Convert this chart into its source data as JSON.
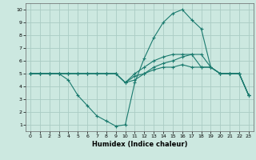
{
  "xlabel": "Humidex (Indice chaleur)",
  "bg_color": "#cce8e0",
  "grid_color": "#aaccc4",
  "line_color": "#1a7a6e",
  "xlim": [
    -0.5,
    23.5
  ],
  "ylim": [
    0.5,
    10.5
  ],
  "xticks": [
    0,
    1,
    2,
    3,
    4,
    5,
    6,
    7,
    8,
    9,
    10,
    11,
    12,
    13,
    14,
    15,
    16,
    17,
    18,
    19,
    20,
    21,
    22,
    23
  ],
  "yticks": [
    1,
    2,
    3,
    4,
    5,
    6,
    7,
    8,
    9,
    10
  ],
  "lines": [
    {
      "x": [
        0,
        1,
        2,
        3,
        4,
        5,
        6,
        7,
        8,
        9,
        10,
        11,
        12,
        13,
        14,
        15,
        16,
        17,
        18,
        19,
        20,
        21,
        22,
        23
      ],
      "y": [
        5.0,
        5.0,
        5.0,
        5.0,
        4.5,
        3.3,
        2.5,
        1.7,
        1.3,
        0.9,
        1.0,
        4.3,
        6.2,
        7.8,
        9.0,
        9.7,
        10.0,
        9.2,
        8.5,
        5.5,
        5.0,
        5.0,
        5.0,
        3.3
      ]
    },
    {
      "x": [
        0,
        1,
        2,
        3,
        4,
        5,
        6,
        7,
        8,
        9,
        10,
        11,
        12,
        13,
        14,
        15,
        16,
        17,
        18,
        19,
        20,
        21,
        22,
        23
      ],
      "y": [
        5.0,
        5.0,
        5.0,
        5.0,
        5.0,
        5.0,
        5.0,
        5.0,
        5.0,
        5.0,
        4.3,
        5.0,
        5.5,
        6.0,
        6.3,
        6.5,
        6.5,
        6.5,
        6.5,
        5.5,
        5.0,
        5.0,
        5.0,
        3.3
      ]
    },
    {
      "x": [
        0,
        1,
        2,
        3,
        4,
        5,
        6,
        7,
        8,
        9,
        10,
        11,
        12,
        13,
        14,
        15,
        16,
        17,
        18,
        19,
        20,
        21,
        22,
        23
      ],
      "y": [
        5.0,
        5.0,
        5.0,
        5.0,
        5.0,
        5.0,
        5.0,
        5.0,
        5.0,
        5.0,
        4.3,
        4.8,
        5.0,
        5.5,
        5.8,
        6.0,
        6.3,
        6.5,
        5.5,
        5.5,
        5.0,
        5.0,
        5.0,
        3.3
      ]
    },
    {
      "x": [
        0,
        1,
        2,
        3,
        4,
        5,
        6,
        7,
        8,
        9,
        10,
        11,
        12,
        13,
        14,
        15,
        16,
        17,
        18,
        19,
        20,
        21,
        22,
        23
      ],
      "y": [
        5.0,
        5.0,
        5.0,
        5.0,
        5.0,
        5.0,
        5.0,
        5.0,
        5.0,
        5.0,
        4.3,
        4.5,
        5.0,
        5.3,
        5.5,
        5.5,
        5.7,
        5.5,
        5.5,
        5.5,
        5.0,
        5.0,
        5.0,
        3.3
      ]
    }
  ]
}
